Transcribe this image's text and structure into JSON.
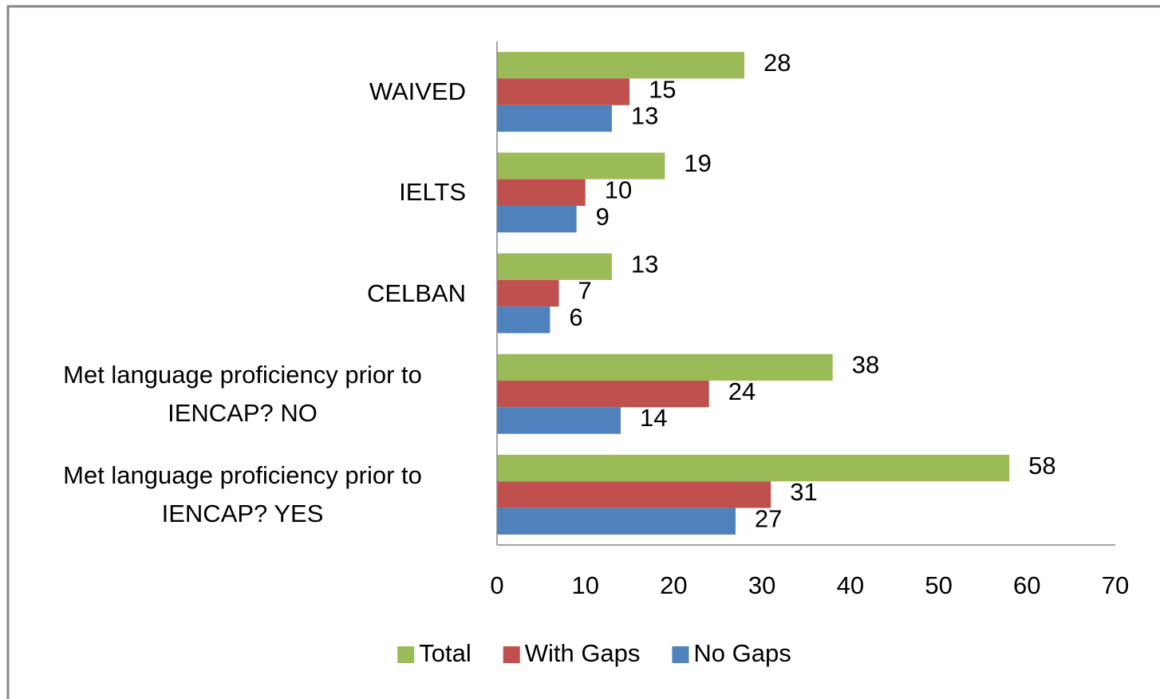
{
  "chart_data": {
    "type": "hbar",
    "categories": [
      "WAIVED",
      "IELTS",
      "CELBAN",
      "Met language proficiency prior to IENCAP? NO",
      "Met language proficiency prior to IENCAP? YES"
    ],
    "series": [
      {
        "name": "Total",
        "color": "#9bbb59",
        "values": [
          28,
          19,
          13,
          38,
          58
        ]
      },
      {
        "name": "With Gaps",
        "color": "#c0504d",
        "values": [
          15,
          10,
          7,
          24,
          31
        ]
      },
      {
        "name": "No Gaps",
        "color": "#4f81bd",
        "values": [
          13,
          9,
          6,
          14,
          27
        ]
      }
    ],
    "xlim": [
      0,
      70
    ],
    "xticks": [
      0,
      10,
      20,
      30,
      40,
      50,
      60,
      70
    ],
    "grid": false,
    "legend": "bottom"
  }
}
